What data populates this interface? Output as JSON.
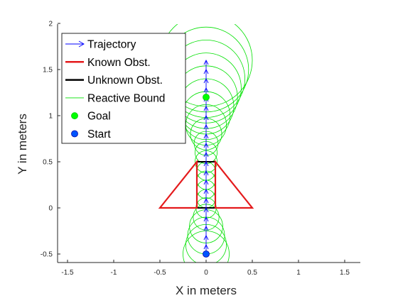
{
  "chart_data": {
    "type": "line",
    "title": "",
    "xlabel": "X in meters",
    "ylabel": "Y in meters",
    "xlim": [
      -1.6,
      1.65
    ],
    "ylim": [
      -0.6,
      2.0
    ],
    "xticks": [
      -1.5,
      -1,
      -0.5,
      0,
      0.5,
      1,
      1.5
    ],
    "xtick_labels": [
      "-1.5",
      "-1",
      "-0.5",
      "0",
      "0.5",
      "1",
      "1.5"
    ],
    "yticks": [
      -0.5,
      0,
      0.5,
      1,
      1.5,
      2
    ],
    "ytick_labels": [
      "-0.5",
      "0",
      "0.5",
      "1",
      "1.5",
      "2"
    ],
    "grid": false,
    "legend_position": "top-left",
    "legend": [
      {
        "label": "Trajectory",
        "kind": "arrow",
        "color": "#0000ff"
      },
      {
        "label": "Known Obst.",
        "kind": "line",
        "color": "#e41a1c"
      },
      {
        "label": "Unknown Obst.",
        "kind": "line",
        "color": "#000000"
      },
      {
        "label": "Reactive Bound",
        "kind": "thinline",
        "color": "#00e000"
      },
      {
        "label": "Goal",
        "kind": "dot",
        "color": "#00ff00"
      },
      {
        "label": "Start",
        "kind": "dot",
        "color": "#0055ff"
      }
    ],
    "series": [
      {
        "name": "Trajectory",
        "color": "#0000ff",
        "points": [
          [
            0,
            -0.5
          ],
          [
            0,
            -0.4
          ],
          [
            0,
            -0.3
          ],
          [
            0,
            -0.2
          ],
          [
            0,
            -0.1
          ],
          [
            0,
            0
          ],
          [
            0,
            0.1
          ],
          [
            0,
            0.2
          ],
          [
            0,
            0.3
          ],
          [
            0,
            0.4
          ],
          [
            0,
            0.5
          ],
          [
            0,
            0.6
          ],
          [
            0,
            0.7
          ],
          [
            0,
            0.8
          ],
          [
            0,
            0.9
          ],
          [
            0,
            1.0
          ],
          [
            0,
            1.1
          ],
          [
            0,
            1.2
          ],
          [
            0,
            1.3
          ],
          [
            0,
            1.4
          ],
          [
            0,
            1.5
          ],
          [
            0,
            1.6
          ]
        ]
      },
      {
        "name": "Known Obst.",
        "color": "#e41a1c",
        "polygons": [
          [
            [
              -0.5,
              0
            ],
            [
              -0.1,
              0
            ],
            [
              -0.1,
              0.5
            ]
          ],
          [
            [
              0.5,
              0
            ],
            [
              0.1,
              0
            ],
            [
              0.1,
              0.5
            ]
          ]
        ]
      },
      {
        "name": "Unknown Obst.",
        "color": "#000000",
        "polygons": [
          [
            [
              -0.1,
              0
            ],
            [
              0.1,
              0
            ],
            [
              0.1,
              0.5
            ],
            [
              -0.1,
              0.5
            ]
          ]
        ]
      },
      {
        "name": "Reactive Bound",
        "color": "#00e000",
        "circles": [
          [
            0,
            -0.5,
            0.25
          ],
          [
            0,
            -0.4,
            0.22
          ],
          [
            0,
            -0.3,
            0.2
          ],
          [
            0,
            -0.2,
            0.18
          ],
          [
            0,
            -0.1,
            0.14
          ],
          [
            0,
            0,
            0.11
          ],
          [
            0,
            0.1,
            0.1
          ],
          [
            0,
            0.2,
            0.1
          ],
          [
            0,
            0.3,
            0.1
          ],
          [
            0,
            0.4,
            0.1
          ],
          [
            0,
            0.5,
            0.12
          ],
          [
            0,
            0.6,
            0.12
          ],
          [
            0,
            0.7,
            0.13
          ],
          [
            0,
            0.8,
            0.17
          ],
          [
            0,
            0.9,
            0.22
          ],
          [
            0,
            1.0,
            0.26
          ],
          [
            0,
            1.1,
            0.3
          ],
          [
            0,
            1.2,
            0.34
          ],
          [
            0,
            1.3,
            0.38
          ],
          [
            0,
            1.4,
            0.42
          ],
          [
            0,
            1.5,
            0.46
          ],
          [
            0,
            1.6,
            0.5
          ]
        ]
      },
      {
        "name": "Goal",
        "color": "#00ff00",
        "points": [
          [
            0,
            1.2
          ]
        ]
      },
      {
        "name": "Start",
        "color": "#0055ff",
        "points": [
          [
            0,
            -0.5
          ]
        ]
      }
    ]
  }
}
